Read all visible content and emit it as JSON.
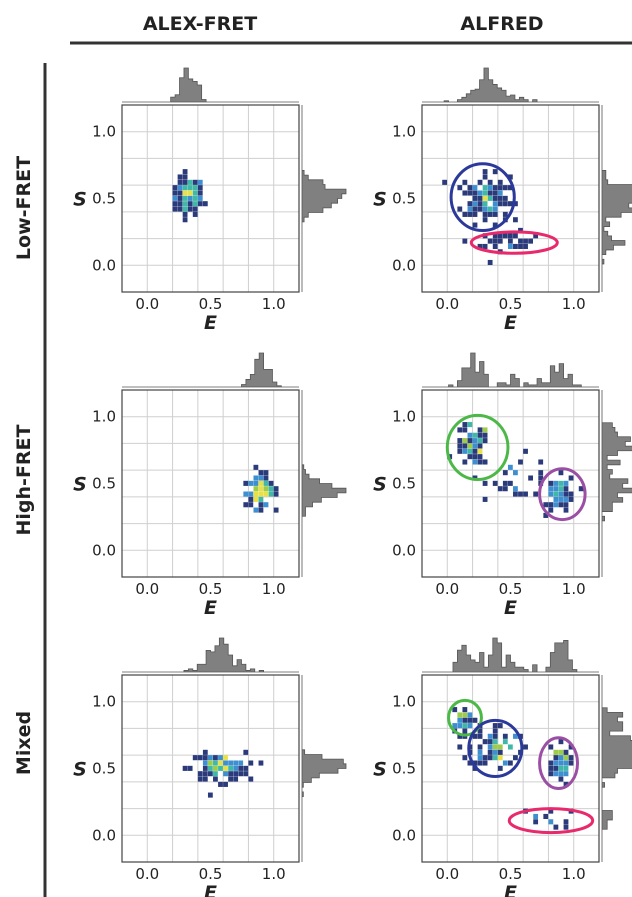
{
  "column_titles": [
    "ALEX-FRET",
    "ALFRED"
  ],
  "row_titles": [
    "Low-FRET",
    "High-FRET",
    "Mixed"
  ],
  "colors": {
    "histogram": "#808080",
    "grid": "#cfcfcf",
    "circle_blue": "#2b3a9a",
    "circle_green": "#4cb848",
    "circle_magenta": "#9b4fa4",
    "circle_red": "#e8296b"
  },
  "chart_data": [
    {
      "type": "scatter",
      "method": "ALEX-FRET",
      "population": "Low-FRET",
      "xlabel": "E",
      "ylabel": "S",
      "xlim": [
        -0.2,
        1.2
      ],
      "ylim": [
        -0.2,
        1.2
      ],
      "xticks": [
        "0.0",
        "0.5",
        "1.0"
      ],
      "yticks": [
        "0.0",
        "0.5",
        "1.0"
      ],
      "grid": true,
      "clusters": [
        {
          "E": 0.33,
          "S": 0.51,
          "sdE": 0.06,
          "sdS": 0.07,
          "n": 110
        }
      ],
      "circles": []
    },
    {
      "type": "scatter",
      "method": "ALFRED",
      "population": "Low-FRET",
      "xlabel": "E",
      "ylabel": "S",
      "xlim": [
        -0.2,
        1.2
      ],
      "ylim": [
        -0.2,
        1.2
      ],
      "xticks": [
        "0.0",
        "0.5",
        "1.0"
      ],
      "yticks": [
        "0.0",
        "0.5",
        "1.0"
      ],
      "grid": true,
      "clusters": [
        {
          "E": 0.3,
          "S": 0.5,
          "sdE": 0.09,
          "sdS": 0.09,
          "n": 130
        },
        {
          "E": 0.48,
          "S": 0.17,
          "sdE": 0.12,
          "sdS": 0.04,
          "n": 30
        }
      ],
      "circles": [
        {
          "color": "blue",
          "E": 0.28,
          "S": 0.51,
          "rE": 0.25,
          "rS": 0.25
        },
        {
          "color": "red",
          "E": 0.53,
          "S": 0.17,
          "rE": 0.34,
          "rS": 0.08
        }
      ]
    },
    {
      "type": "scatter",
      "method": "ALEX-FRET",
      "population": "High-FRET",
      "xlabel": "E",
      "ylabel": "S",
      "xlim": [
        -0.2,
        1.2
      ],
      "ylim": [
        -0.2,
        1.2
      ],
      "xticks": [
        "0.0",
        "0.5",
        "1.0"
      ],
      "yticks": [
        "0.0",
        "0.5",
        "1.0"
      ],
      "grid": true,
      "clusters": [
        {
          "E": 0.9,
          "S": 0.44,
          "sdE": 0.06,
          "sdS": 0.06,
          "n": 100
        }
      ],
      "circles": []
    },
    {
      "type": "scatter",
      "method": "ALFRED",
      "population": "High-FRET",
      "xlabel": "E",
      "ylabel": "S",
      "xlim": [
        -0.2,
        1.2
      ],
      "ylim": [
        -0.2,
        1.2
      ],
      "xticks": [
        "0.0",
        "0.5",
        "1.0"
      ],
      "yticks": [
        "0.0",
        "0.5",
        "1.0"
      ],
      "grid": true,
      "clusters": [
        {
          "E": 0.2,
          "S": 0.78,
          "sdE": 0.07,
          "sdS": 0.08,
          "n": 60
        },
        {
          "E": 0.9,
          "S": 0.42,
          "sdE": 0.06,
          "sdS": 0.07,
          "n": 45
        },
        {
          "E": 0.55,
          "S": 0.55,
          "sdE": 0.14,
          "sdS": 0.08,
          "n": 25
        }
      ],
      "circles": [
        {
          "color": "green",
          "E": 0.24,
          "S": 0.77,
          "rE": 0.24,
          "rS": 0.24
        },
        {
          "color": "magenta",
          "E": 0.91,
          "S": 0.42,
          "rE": 0.18,
          "rS": 0.19
        }
      ]
    },
    {
      "type": "scatter",
      "method": "ALEX-FRET",
      "population": "Mixed",
      "xlabel": "E",
      "ylabel": "S",
      "xlim": [
        -0.2,
        1.2
      ],
      "ylim": [
        -0.2,
        1.2
      ],
      "xticks": [
        "0.0",
        "0.5",
        "1.0"
      ],
      "yticks": [
        "0.0",
        "0.5",
        "1.0"
      ],
      "grid": true,
      "clusters": [
        {
          "E": 0.57,
          "S": 0.51,
          "sdE": 0.11,
          "sdS": 0.05,
          "n": 130
        }
      ],
      "circles": []
    },
    {
      "type": "scatter",
      "method": "ALFRED",
      "population": "Mixed",
      "xlabel": "E",
      "ylabel": "S",
      "xlim": [
        -0.2,
        1.2
      ],
      "ylim": [
        -0.2,
        1.2
      ],
      "xticks": [
        "0.0",
        "0.5",
        "1.0"
      ],
      "yticks": [
        "0.0",
        "0.5",
        "1.0"
      ],
      "grid": true,
      "clusters": [
        {
          "E": 0.14,
          "S": 0.87,
          "sdE": 0.05,
          "sdS": 0.05,
          "n": 30
        },
        {
          "E": 0.38,
          "S": 0.66,
          "sdE": 0.1,
          "sdS": 0.08,
          "n": 70
        },
        {
          "E": 0.88,
          "S": 0.53,
          "sdE": 0.05,
          "sdS": 0.08,
          "n": 45
        },
        {
          "E": 0.75,
          "S": 0.12,
          "sdE": 0.12,
          "sdS": 0.04,
          "n": 12
        }
      ],
      "circles": [
        {
          "color": "green",
          "E": 0.14,
          "S": 0.88,
          "rE": 0.13,
          "rS": 0.13
        },
        {
          "color": "blue",
          "E": 0.38,
          "S": 0.65,
          "rE": 0.21,
          "rS": 0.21
        },
        {
          "color": "magenta",
          "E": 0.88,
          "S": 0.54,
          "rE": 0.15,
          "rS": 0.19
        },
        {
          "color": "red",
          "E": 0.82,
          "S": 0.11,
          "rE": 0.33,
          "rS": 0.09
        }
      ]
    }
  ]
}
